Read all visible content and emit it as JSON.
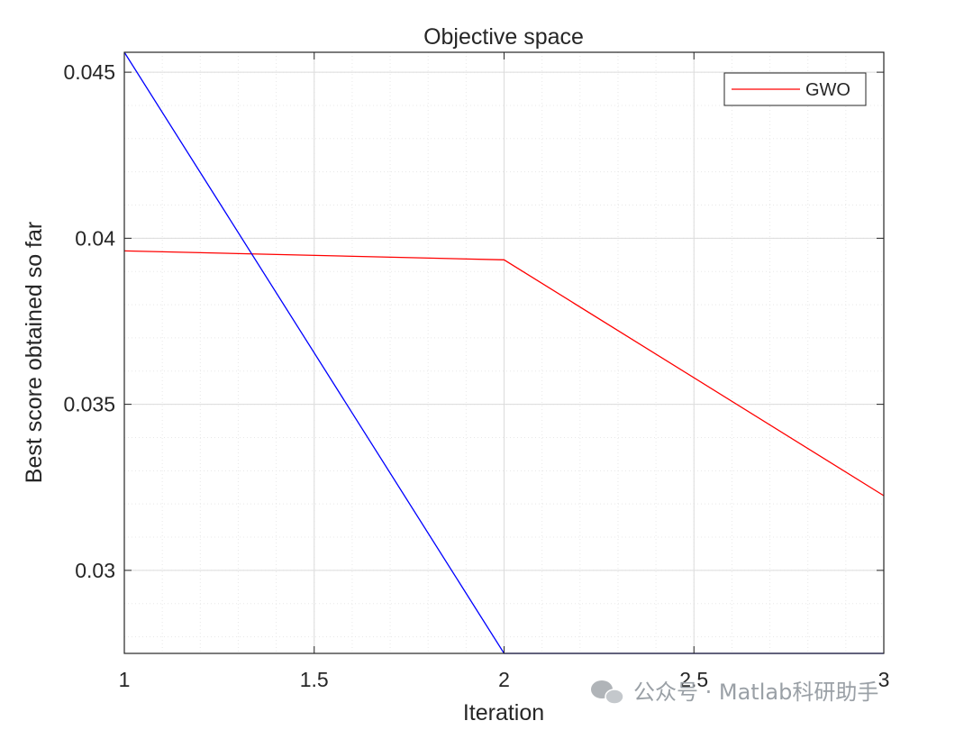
{
  "chart_data": {
    "type": "line",
    "title": "Objective space",
    "xlabel": "Iteration",
    "ylabel": "Best score obtained so far",
    "xlim": [
      1,
      3
    ],
    "ylim": [
      0.0275,
      0.0456
    ],
    "x_ticks": [
      "1",
      "1.5",
      "2",
      "2.5",
      "3"
    ],
    "y_ticks": [
      "0.03",
      "0.035",
      "0.04",
      "0.045"
    ],
    "grid": true,
    "minor_grid": true,
    "legend_position": "top-right",
    "series": [
      {
        "name": "GWO",
        "color": "#ff0000",
        "x": [
          1,
          2,
          3
        ],
        "y": [
          0.03962,
          0.03935,
          0.03225
        ]
      },
      {
        "color": "#0000ff",
        "x": [
          1,
          2,
          3
        ],
        "y": [
          0.0456,
          0.0275,
          0.0275
        ]
      }
    ]
  },
  "watermark": {
    "text": "公众号 · Matlab科研助手",
    "icon": "wechat-icon"
  }
}
